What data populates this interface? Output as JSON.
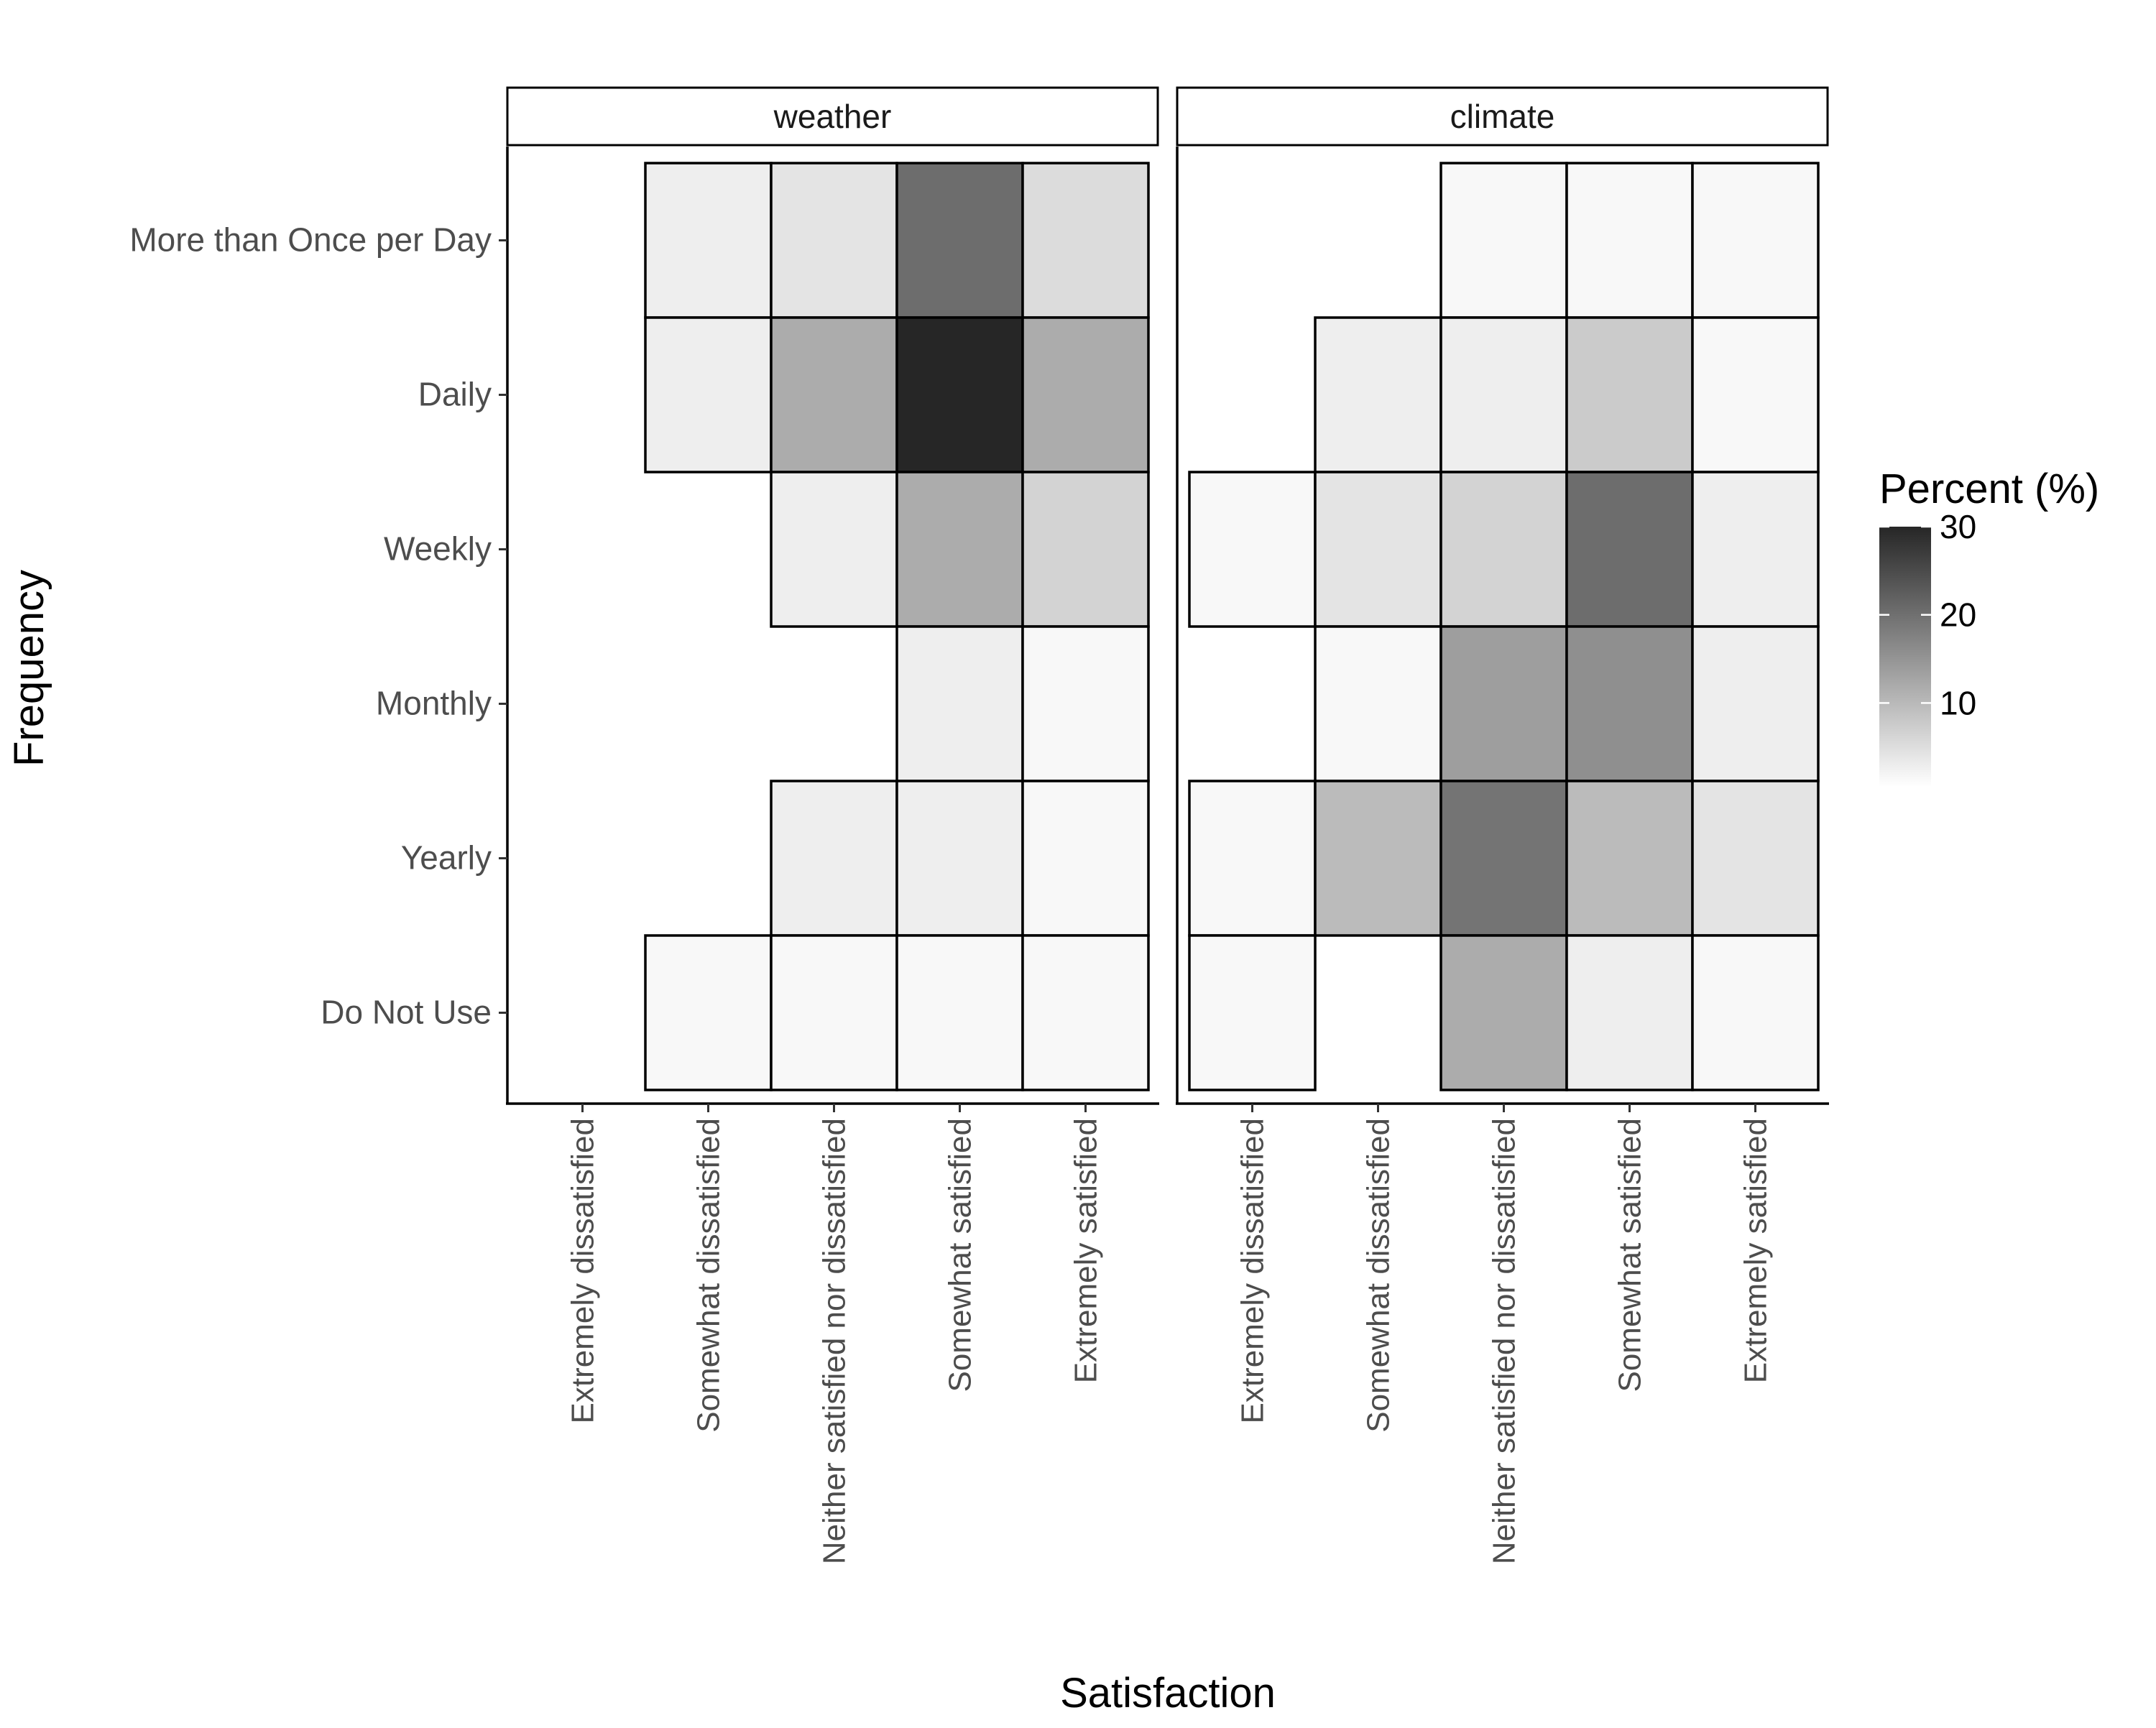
{
  "chart_data": {
    "type": "heatmap",
    "title": "",
    "xlabel": "Satisfaction",
    "ylabel": "Frequency",
    "x_categories": [
      "Extremely dissatisfied",
      "Somewhat dissatisfied",
      "Neither satisfied nor dissatisfied",
      "Somewhat satisfied",
      "Extremely satisfied"
    ],
    "y_categories": [
      "More than Once per Day",
      "Daily",
      "Weekly",
      "Monthly",
      "Yearly",
      "Do Not Use"
    ],
    "facets": [
      {
        "label": "weather",
        "values": [
          [
            null,
            2,
            3,
            19,
            4
          ],
          [
            null,
            2,
            10,
            30,
            10
          ],
          [
            null,
            null,
            2,
            10,
            5
          ],
          [
            null,
            null,
            null,
            2,
            1
          ],
          [
            null,
            null,
            2,
            2,
            1
          ],
          [
            null,
            1,
            1,
            1,
            1
          ]
        ]
      },
      {
        "label": "climate",
        "values": [
          [
            null,
            null,
            1,
            1,
            1
          ],
          [
            null,
            2,
            2,
            6,
            1
          ],
          [
            1,
            3,
            5,
            19,
            2
          ],
          [
            null,
            1,
            12,
            14,
            2
          ],
          [
            1,
            8,
            18,
            8,
            3
          ],
          [
            1,
            null,
            10,
            2,
            1
          ]
        ]
      }
    ],
    "legend": {
      "title": "Percent (%)",
      "ticks": [
        10,
        20,
        30
      ],
      "range": [
        0.5,
        30
      ],
      "color_low": "#ffffff",
      "color_high": "#262626",
      "placement": "right"
    },
    "grid": false
  }
}
